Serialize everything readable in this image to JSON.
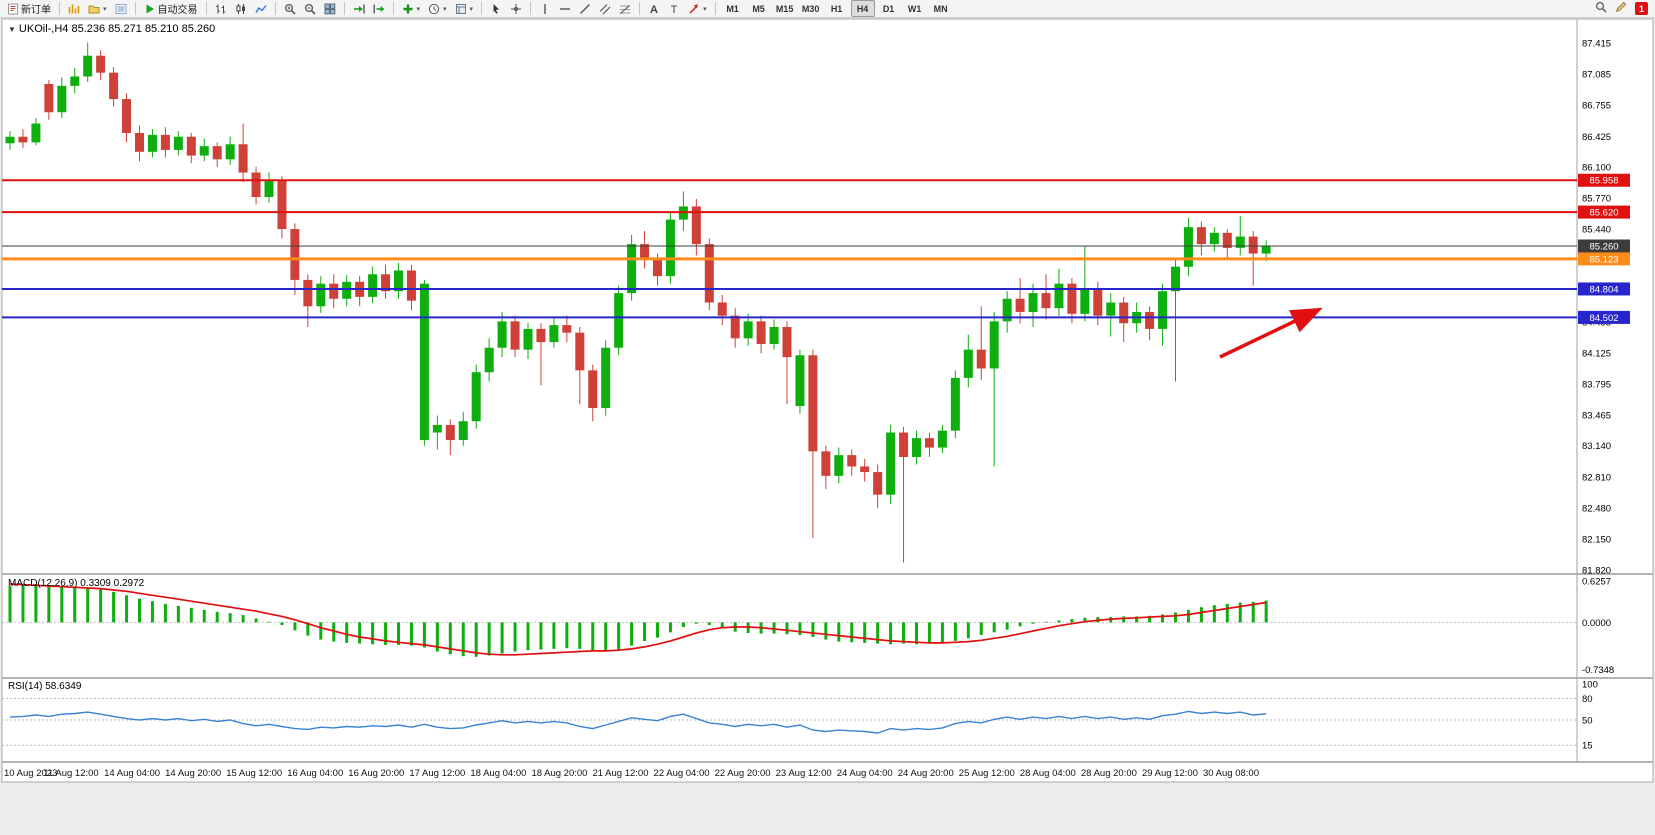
{
  "topright": {
    "notification_count": "1"
  },
  "toolbar": {
    "buttons": [
      {
        "name": "new-order",
        "icon": "new-order",
        "label": "新订单"
      },
      {
        "type": "sep"
      },
      {
        "name": "charts",
        "icon": "charts"
      },
      {
        "name": "profiles",
        "icon": "profiles",
        "dropdown": true
      },
      {
        "name": "data-window",
        "icon": "data-window"
      },
      {
        "type": "sep"
      },
      {
        "name": "autotrading",
        "icon": "play",
        "label": "自动交易"
      },
      {
        "type": "sep"
      },
      {
        "name": "bar-chart",
        "icon": "bars"
      },
      {
        "name": "candle-chart",
        "icon": "candles"
      },
      {
        "name": "line-chart",
        "icon": "line"
      },
      {
        "type": "sep"
      },
      {
        "name": "zoom-in",
        "icon": "zoom-in"
      },
      {
        "name": "zoom-out",
        "icon": "zoom-out"
      },
      {
        "name": "tile-windows",
        "icon": "tile"
      },
      {
        "type": "sep"
      },
      {
        "name": "auto-scroll",
        "icon": "auto-scroll"
      },
      {
        "name": "chart-shift",
        "icon": "chart-shift"
      },
      {
        "type": "sep"
      },
      {
        "name": "indicators",
        "icon": "indicators",
        "dropdown": true
      },
      {
        "name": "periods",
        "icon": "clock",
        "dropdown": true
      },
      {
        "name": "templates",
        "icon": "template",
        "dropdown": true
      },
      {
        "type": "sep"
      },
      {
        "name": "cursor",
        "icon": "cursor"
      },
      {
        "name": "crosshair",
        "icon": "crosshair"
      },
      {
        "type": "sep"
      },
      {
        "name": "vertical-line",
        "icon": "vline"
      },
      {
        "name": "horizontal-line",
        "icon": "hline"
      },
      {
        "name": "trendline",
        "icon": "trendline"
      },
      {
        "name": "channel",
        "icon": "channel"
      },
      {
        "name": "fibonacci",
        "icon": "fibo"
      },
      {
        "type": "sep"
      },
      {
        "name": "text",
        "icon": "textA"
      },
      {
        "name": "text-label",
        "icon": "textT"
      },
      {
        "name": "arrows",
        "icon": "arrows",
        "dropdown": true
      },
      {
        "type": "sep"
      }
    ],
    "timeframes": [
      "M1",
      "M5",
      "M15",
      "M30",
      "H1",
      "H4",
      "D1",
      "W1",
      "MN"
    ],
    "active_timeframe": "H4"
  },
  "chart_data": [
    {
      "type": "candlestick",
      "title": "UKOil-,H4  85.236 85.271 85.210 85.260",
      "symbol": "UKOil-",
      "period": "H4",
      "ohlc": {
        "open": "85.236",
        "high": "85.271",
        "low": "85.210",
        "close": "85.260"
      },
      "up_color": "#0fae0f",
      "down_color": "#cf4038",
      "ylim": [
        81.7,
        87.6
      ],
      "y_ticks": [
        "87.415",
        "87.085",
        "86.755",
        "86.425",
        "86.100",
        "85.770",
        "85.440",
        "85.110",
        "84.780",
        "84.455",
        "84.125",
        "83.795",
        "83.465",
        "83.140",
        "82.810",
        "82.480",
        "82.150",
        "81.820"
      ],
      "x_labels": [
        "10 Aug 2023",
        "11 Aug 12:00",
        "14 Aug 04:00",
        "14 Aug 20:00",
        "15 Aug 12:00",
        "16 Aug 04:00",
        "16 Aug 20:00",
        "17 Aug 12:00",
        "18 Aug 04:00",
        "18 Aug 20:00",
        "21 Aug 12:00",
        "22 Aug 04:00",
        "22 Aug 20:00",
        "23 Aug 12:00",
        "24 Aug 04:00",
        "24 Aug 20:00",
        "25 Aug 12:00",
        "28 Aug 04:00",
        "28 Aug 20:00",
        "29 Aug 12:00",
        "30 Aug 08:00"
      ],
      "levels": [
        {
          "price": 85.958,
          "label": "85.958",
          "color": "#e01010",
          "width": 2,
          "role": "resistance-line"
        },
        {
          "price": 85.62,
          "label": "85.620",
          "color": "#e01010",
          "width": 2,
          "role": "resistance-line"
        },
        {
          "price": 85.26,
          "label": "85.260",
          "color": "#3c3c3c",
          "width": 1,
          "role": "current-price-line"
        },
        {
          "price": 85.123,
          "label": "85.123",
          "color": "#ff8c1a",
          "width": 3,
          "role": "pivot-line"
        },
        {
          "price": 84.804,
          "label": "84.804",
          "color": "#2626cc",
          "width": 2,
          "role": "support-line"
        },
        {
          "price": 84.502,
          "label": "84.502",
          "color": "#2626cc",
          "width": 2,
          "role": "support-line"
        }
      ],
      "annotation_arrow": {
        "color": "#e01010",
        "target_level": "84.502"
      },
      "candles": [
        [
          86.35,
          86.48,
          86.28,
          86.42
        ],
        [
          86.42,
          86.5,
          86.3,
          86.36
        ],
        [
          86.36,
          86.62,
          86.33,
          86.56
        ],
        [
          86.98,
          87.02,
          86.6,
          86.68
        ],
        [
          86.68,
          87.05,
          86.62,
          86.96
        ],
        [
          86.96,
          87.15,
          86.88,
          87.06
        ],
        [
          87.06,
          87.42,
          87.0,
          87.28
        ],
        [
          87.28,
          87.34,
          87.02,
          87.1
        ],
        [
          87.1,
          87.16,
          86.74,
          86.82
        ],
        [
          86.82,
          86.88,
          86.36,
          86.46
        ],
        [
          86.46,
          86.54,
          86.16,
          86.26
        ],
        [
          86.26,
          86.5,
          86.2,
          86.44
        ],
        [
          86.44,
          86.52,
          86.2,
          86.28
        ],
        [
          86.28,
          86.48,
          86.22,
          86.42
        ],
        [
          86.42,
          86.46,
          86.14,
          86.22
        ],
        [
          86.22,
          86.4,
          86.16,
          86.32
        ],
        [
          86.32,
          86.36,
          86.1,
          86.18
        ],
        [
          86.18,
          86.42,
          86.12,
          86.34
        ],
        [
          86.34,
          86.56,
          85.94,
          86.04
        ],
        [
          86.04,
          86.1,
          85.7,
          85.78
        ],
        [
          85.78,
          86.04,
          85.72,
          85.96
        ],
        [
          85.96,
          86.0,
          85.34,
          85.44
        ],
        [
          85.44,
          85.5,
          84.74,
          84.9
        ],
        [
          84.9,
          84.96,
          84.4,
          84.62
        ],
        [
          84.62,
          84.94,
          84.55,
          84.86
        ],
        [
          84.86,
          84.96,
          84.6,
          84.7
        ],
        [
          84.7,
          84.95,
          84.62,
          84.88
        ],
        [
          84.88,
          84.94,
          84.62,
          84.72
        ],
        [
          84.72,
          85.04,
          84.65,
          84.96
        ],
        [
          84.96,
          85.06,
          84.7,
          84.78
        ],
        [
          84.78,
          85.08,
          84.7,
          85.0
        ],
        [
          85.0,
          85.06,
          84.58,
          84.68
        ],
        [
          83.2,
          84.9,
          83.14,
          84.86
        ],
        [
          83.28,
          83.46,
          83.1,
          83.36
        ],
        [
          83.36,
          83.42,
          83.04,
          83.2
        ],
        [
          83.2,
          83.5,
          83.14,
          83.4
        ],
        [
          83.4,
          84.0,
          83.32,
          83.92
        ],
        [
          83.92,
          84.28,
          83.82,
          84.18
        ],
        [
          84.18,
          84.56,
          84.08,
          84.46
        ],
        [
          84.46,
          84.52,
          84.08,
          84.16
        ],
        [
          84.16,
          84.44,
          84.06,
          84.38
        ],
        [
          84.38,
          84.44,
          83.78,
          84.24
        ],
        [
          84.24,
          84.5,
          84.18,
          84.42
        ],
        [
          84.42,
          84.52,
          84.24,
          84.34
        ],
        [
          84.34,
          84.4,
          83.58,
          83.94
        ],
        [
          83.94,
          84.0,
          83.4,
          83.54
        ],
        [
          83.54,
          84.26,
          83.46,
          84.18
        ],
        [
          84.18,
          84.84,
          84.1,
          84.76
        ],
        [
          84.76,
          85.38,
          84.68,
          85.28
        ],
        [
          85.28,
          85.42,
          85.02,
          85.12
        ],
        [
          85.12,
          85.18,
          84.84,
          84.94
        ],
        [
          84.94,
          85.62,
          84.86,
          85.54
        ],
        [
          85.54,
          85.84,
          85.42,
          85.68
        ],
        [
          85.68,
          85.76,
          85.16,
          85.28
        ],
        [
          85.28,
          85.34,
          84.58,
          84.66
        ],
        [
          84.66,
          84.74,
          84.42,
          84.52
        ],
        [
          84.52,
          84.6,
          84.18,
          84.28
        ],
        [
          84.28,
          84.54,
          84.2,
          84.46
        ],
        [
          84.46,
          84.52,
          84.12,
          84.22
        ],
        [
          84.22,
          84.48,
          84.16,
          84.4
        ],
        [
          84.4,
          84.46,
          83.58,
          84.08
        ],
        [
          83.56,
          84.16,
          83.48,
          84.1
        ],
        [
          84.1,
          84.16,
          82.16,
          83.08
        ],
        [
          83.08,
          83.14,
          82.68,
          82.82
        ],
        [
          82.82,
          83.12,
          82.74,
          83.04
        ],
        [
          83.04,
          83.1,
          82.82,
          82.92
        ],
        [
          82.92,
          83.0,
          82.76,
          82.86
        ],
        [
          82.86,
          82.94,
          82.48,
          82.62
        ],
        [
          82.62,
          83.36,
          82.52,
          83.28
        ],
        [
          83.28,
          83.34,
          81.9,
          83.02
        ],
        [
          83.02,
          83.3,
          82.94,
          83.22
        ],
        [
          83.22,
          83.28,
          83.02,
          83.12
        ],
        [
          83.12,
          83.36,
          83.06,
          83.3
        ],
        [
          83.3,
          83.94,
          83.22,
          83.86
        ],
        [
          83.86,
          84.32,
          83.76,
          84.16
        ],
        [
          84.16,
          84.62,
          83.84,
          83.96
        ],
        [
          83.96,
          84.56,
          82.92,
          84.46
        ],
        [
          84.46,
          84.78,
          84.34,
          84.7
        ],
        [
          84.7,
          84.92,
          84.44,
          84.56
        ],
        [
          84.56,
          84.86,
          84.4,
          84.76
        ],
        [
          84.76,
          84.96,
          84.48,
          84.6
        ],
        [
          84.6,
          85.02,
          84.52,
          84.86
        ],
        [
          84.86,
          84.92,
          84.44,
          84.54
        ],
        [
          84.54,
          85.26,
          84.46,
          84.8
        ],
        [
          84.8,
          84.88,
          84.42,
          84.52
        ],
        [
          84.52,
          84.76,
          84.3,
          84.66
        ],
        [
          84.66,
          84.72,
          84.24,
          84.44
        ],
        [
          84.44,
          84.66,
          84.34,
          84.56
        ],
        [
          84.56,
          84.62,
          84.26,
          84.38
        ],
        [
          84.38,
          84.86,
          84.2,
          84.78
        ],
        [
          84.78,
          85.12,
          83.82,
          85.04
        ],
        [
          85.04,
          85.56,
          84.94,
          85.46
        ],
        [
          85.46,
          85.52,
          85.16,
          85.28
        ],
        [
          85.28,
          85.46,
          85.2,
          85.4
        ],
        [
          85.4,
          85.44,
          85.12,
          85.24
        ],
        [
          85.24,
          85.58,
          85.16,
          85.36
        ],
        [
          85.36,
          85.42,
          84.84,
          85.18
        ],
        [
          85.18,
          85.32,
          85.1,
          85.26
        ]
      ]
    },
    {
      "type": "macd-histogram",
      "label": "MACD(12,26,9) 0.3309 0.2972",
      "values_current": [
        "0.3309",
        "0.2972"
      ],
      "y_ticks": [
        "0.6257",
        "0.0000",
        "-0.7348"
      ],
      "ylim": [
        -0.7348,
        0.6257
      ],
      "bar_color": "#0fae0f",
      "signal_color": "#e01010",
      "histogram": [
        0.55,
        0.57,
        0.58,
        0.56,
        0.55,
        0.53,
        0.52,
        0.5,
        0.46,
        0.41,
        0.36,
        0.32,
        0.28,
        0.25,
        0.22,
        0.19,
        0.16,
        0.14,
        0.11,
        0.06,
        0.01,
        -0.04,
        -0.12,
        -0.2,
        -0.26,
        -0.29,
        -0.31,
        -0.32,
        -0.33,
        -0.34,
        -0.34,
        -0.35,
        -0.38,
        -0.44,
        -0.48,
        -0.51,
        -0.52,
        -0.5,
        -0.47,
        -0.44,
        -0.42,
        -0.41,
        -0.4,
        -0.39,
        -0.4,
        -0.43,
        -0.44,
        -0.41,
        -0.35,
        -0.28,
        -0.23,
        -0.15,
        -0.07,
        -0.02,
        -0.04,
        -0.09,
        -0.14,
        -0.16,
        -0.17,
        -0.17,
        -0.18,
        -0.19,
        -0.22,
        -0.26,
        -0.29,
        -0.3,
        -0.31,
        -0.32,
        -0.33,
        -0.32,
        -0.33,
        -0.32,
        -0.3,
        -0.28,
        -0.24,
        -0.19,
        -0.15,
        -0.11,
        -0.06,
        -0.02,
        0.01,
        0.03,
        0.05,
        0.07,
        0.08,
        0.08,
        0.09,
        0.09,
        0.1,
        0.12,
        0.15,
        0.19,
        0.23,
        0.26,
        0.28,
        0.3,
        0.31,
        0.33
      ],
      "signal": [
        0.58,
        0.57,
        0.56,
        0.55,
        0.54,
        0.53,
        0.52,
        0.51,
        0.49,
        0.47,
        0.44,
        0.41,
        0.38,
        0.35,
        0.32,
        0.29,
        0.26,
        0.23,
        0.2,
        0.17,
        0.13,
        0.09,
        0.04,
        -0.02,
        -0.08,
        -0.13,
        -0.18,
        -0.22,
        -0.25,
        -0.28,
        -0.3,
        -0.32,
        -0.34,
        -0.37,
        -0.4,
        -0.43,
        -0.46,
        -0.48,
        -0.49,
        -0.49,
        -0.48,
        -0.47,
        -0.46,
        -0.45,
        -0.44,
        -0.43,
        -0.43,
        -0.42,
        -0.4,
        -0.37,
        -0.33,
        -0.28,
        -0.22,
        -0.16,
        -0.11,
        -0.08,
        -0.07,
        -0.07,
        -0.08,
        -0.1,
        -0.12,
        -0.14,
        -0.16,
        -0.18,
        -0.2,
        -0.22,
        -0.24,
        -0.26,
        -0.28,
        -0.29,
        -0.3,
        -0.31,
        -0.31,
        -0.3,
        -0.29,
        -0.27,
        -0.24,
        -0.21,
        -0.17,
        -0.13,
        -0.09,
        -0.05,
        -0.02,
        0.01,
        0.03,
        0.05,
        0.06,
        0.07,
        0.08,
        0.09,
        0.1,
        0.12,
        0.15,
        0.18,
        0.21,
        0.24,
        0.27,
        0.3
      ]
    },
    {
      "type": "line",
      "label": "RSI(14) 58.6349",
      "value_current": "58.6349",
      "y_ticks": [
        "100",
        "80",
        "50",
        "15"
      ],
      "ylim": [
        0,
        100
      ],
      "line_color": "#3b82d4",
      "values": [
        54,
        55,
        57,
        55,
        58,
        59,
        61,
        58,
        55,
        52,
        50,
        52,
        50,
        52,
        49,
        51,
        48,
        50,
        45,
        42,
        44,
        41,
        38,
        37,
        40,
        39,
        41,
        40,
        42,
        41,
        43,
        40,
        44,
        40,
        38,
        39,
        43,
        46,
        49,
        46,
        48,
        46,
        48,
        46,
        41,
        38,
        43,
        48,
        53,
        51,
        49,
        55,
        58,
        52,
        46,
        44,
        41,
        44,
        42,
        44,
        40,
        43,
        36,
        34,
        36,
        35,
        34,
        32,
        38,
        36,
        38,
        37,
        39,
        45,
        48,
        46,
        51,
        54,
        51,
        54,
        52,
        55,
        52,
        55,
        52,
        54,
        51,
        53,
        51,
        56,
        58,
        62,
        59,
        61,
        59,
        61,
        57,
        58.6
      ]
    }
  ]
}
